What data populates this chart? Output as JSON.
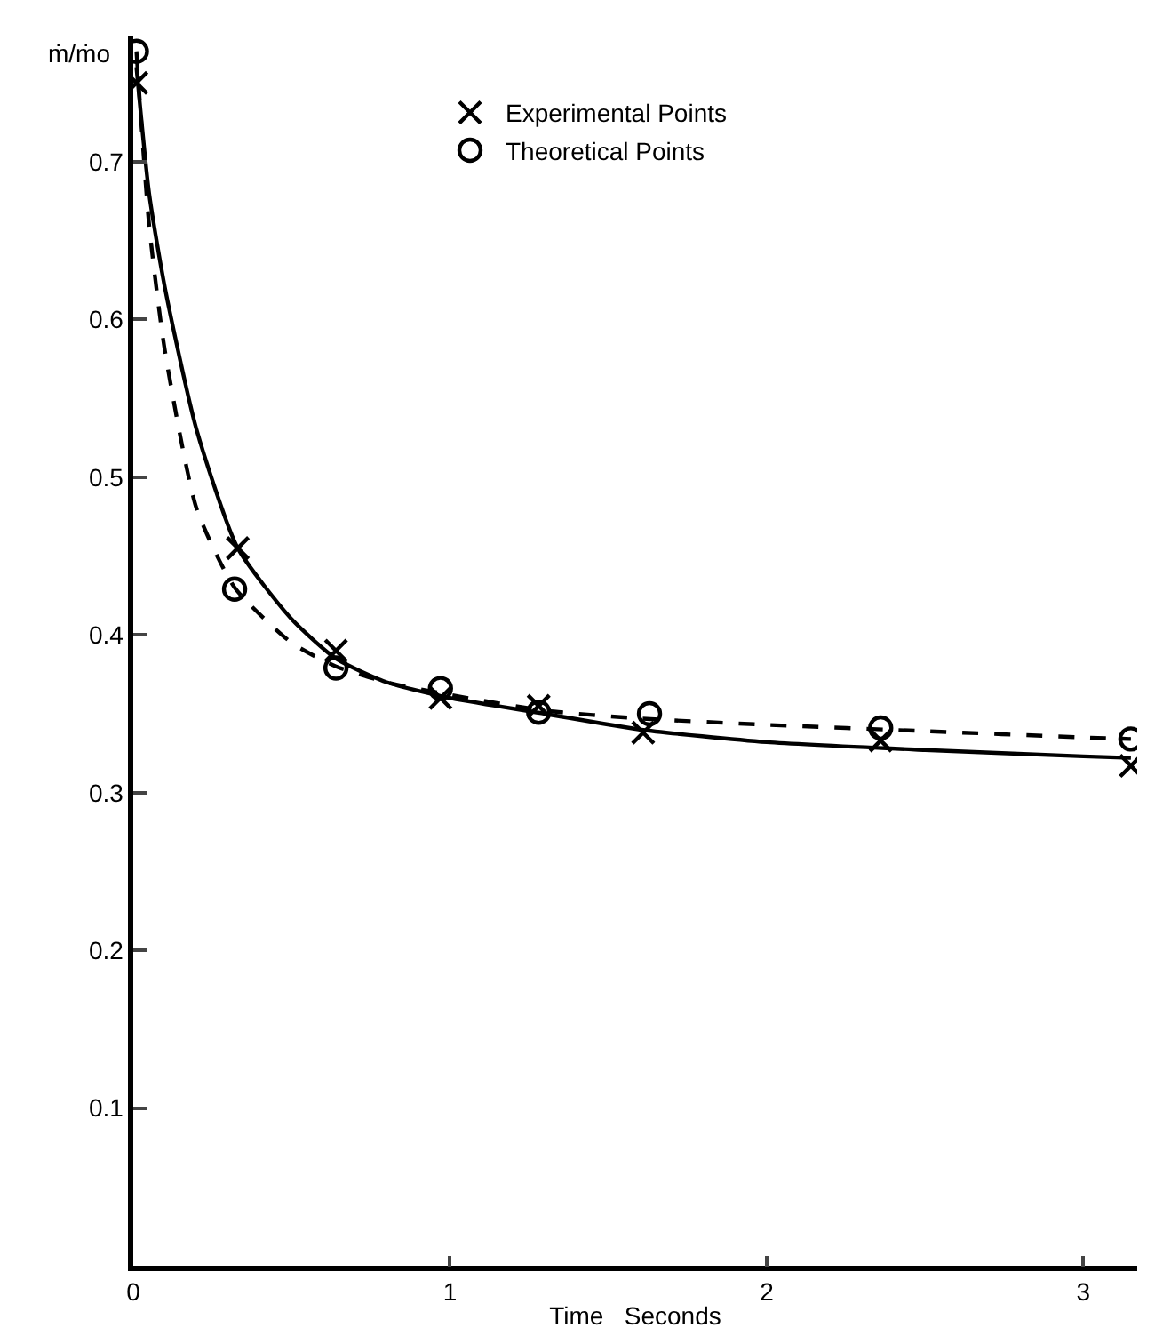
{
  "chart_data": {
    "type": "line",
    "xlabel": "Time   Seconds",
    "ylabel": "ṁ/ṁo",
    "xlim": [
      0,
      3.17
    ],
    "ylim": [
      0,
      0.78
    ],
    "xticks": [
      0,
      1,
      2,
      3
    ],
    "yticks": [
      0.1,
      0.2,
      0.3,
      0.4,
      0.5,
      0.6,
      0.7
    ],
    "grid": false,
    "legend": "top",
    "series": [
      {
        "line_style": "solid",
        "color": "#000000",
        "x": [
          0.01,
          0.05,
          0.1,
          0.2,
          0.33,
          0.5,
          0.64,
          0.8,
          1.0,
          1.3,
          1.6,
          2.0,
          2.5,
          3.0,
          3.15
        ],
        "values": [
          0.76,
          0.68,
          0.62,
          0.53,
          0.455,
          0.41,
          0.385,
          0.37,
          0.36,
          0.35,
          0.34,
          0.332,
          0.327,
          0.323,
          0.322
        ]
      },
      {
        "line_style": "dashed",
        "color": "#000000",
        "x": [
          0.01,
          0.05,
          0.1,
          0.2,
          0.32,
          0.5,
          0.64,
          0.8,
          1.0,
          1.3,
          1.6,
          2.0,
          2.5,
          3.0,
          3.15
        ],
        "values": [
          0.77,
          0.66,
          0.58,
          0.48,
          0.43,
          0.395,
          0.38,
          0.37,
          0.362,
          0.352,
          0.347,
          0.343,
          0.339,
          0.335,
          0.334
        ]
      },
      {
        "type": "scatter",
        "name": "Experimental Points",
        "marker": "cross",
        "color": "#000000",
        "x": [
          0.01,
          0.33,
          0.64,
          0.97,
          1.28,
          1.61,
          2.36,
          3.15
        ],
        "values": [
          0.75,
          0.455,
          0.39,
          0.36,
          0.355,
          0.338,
          0.333,
          0.317
        ]
      },
      {
        "type": "scatter",
        "name": "Theoretical Points",
        "marker": "circle",
        "color": "#000000",
        "x": [
          0.01,
          0.32,
          0.64,
          0.97,
          1.28,
          1.63,
          2.36,
          3.15
        ],
        "values": [
          0.77,
          0.429,
          0.379,
          0.366,
          0.351,
          0.35,
          0.341,
          0.334
        ]
      }
    ]
  }
}
